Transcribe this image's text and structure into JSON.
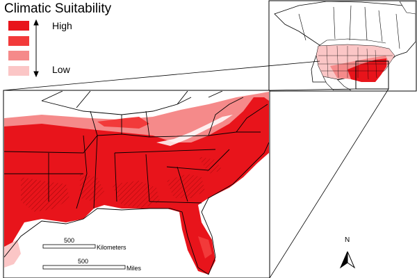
{
  "legend": {
    "title": "Climatic Suitability",
    "high_label": "High",
    "low_label": "Low",
    "classes": [
      {
        "color": "#e8141b"
      },
      {
        "color": "#f23a3a"
      },
      {
        "color": "#f58a8a"
      },
      {
        "color": "#fbc6c6"
      }
    ]
  },
  "scalebar_km": {
    "value": "500",
    "unit": "Kilometers"
  },
  "scalebar_mi": {
    "value": "500",
    "unit": "Miles"
  },
  "north_arrow": {
    "label": "N"
  }
}
